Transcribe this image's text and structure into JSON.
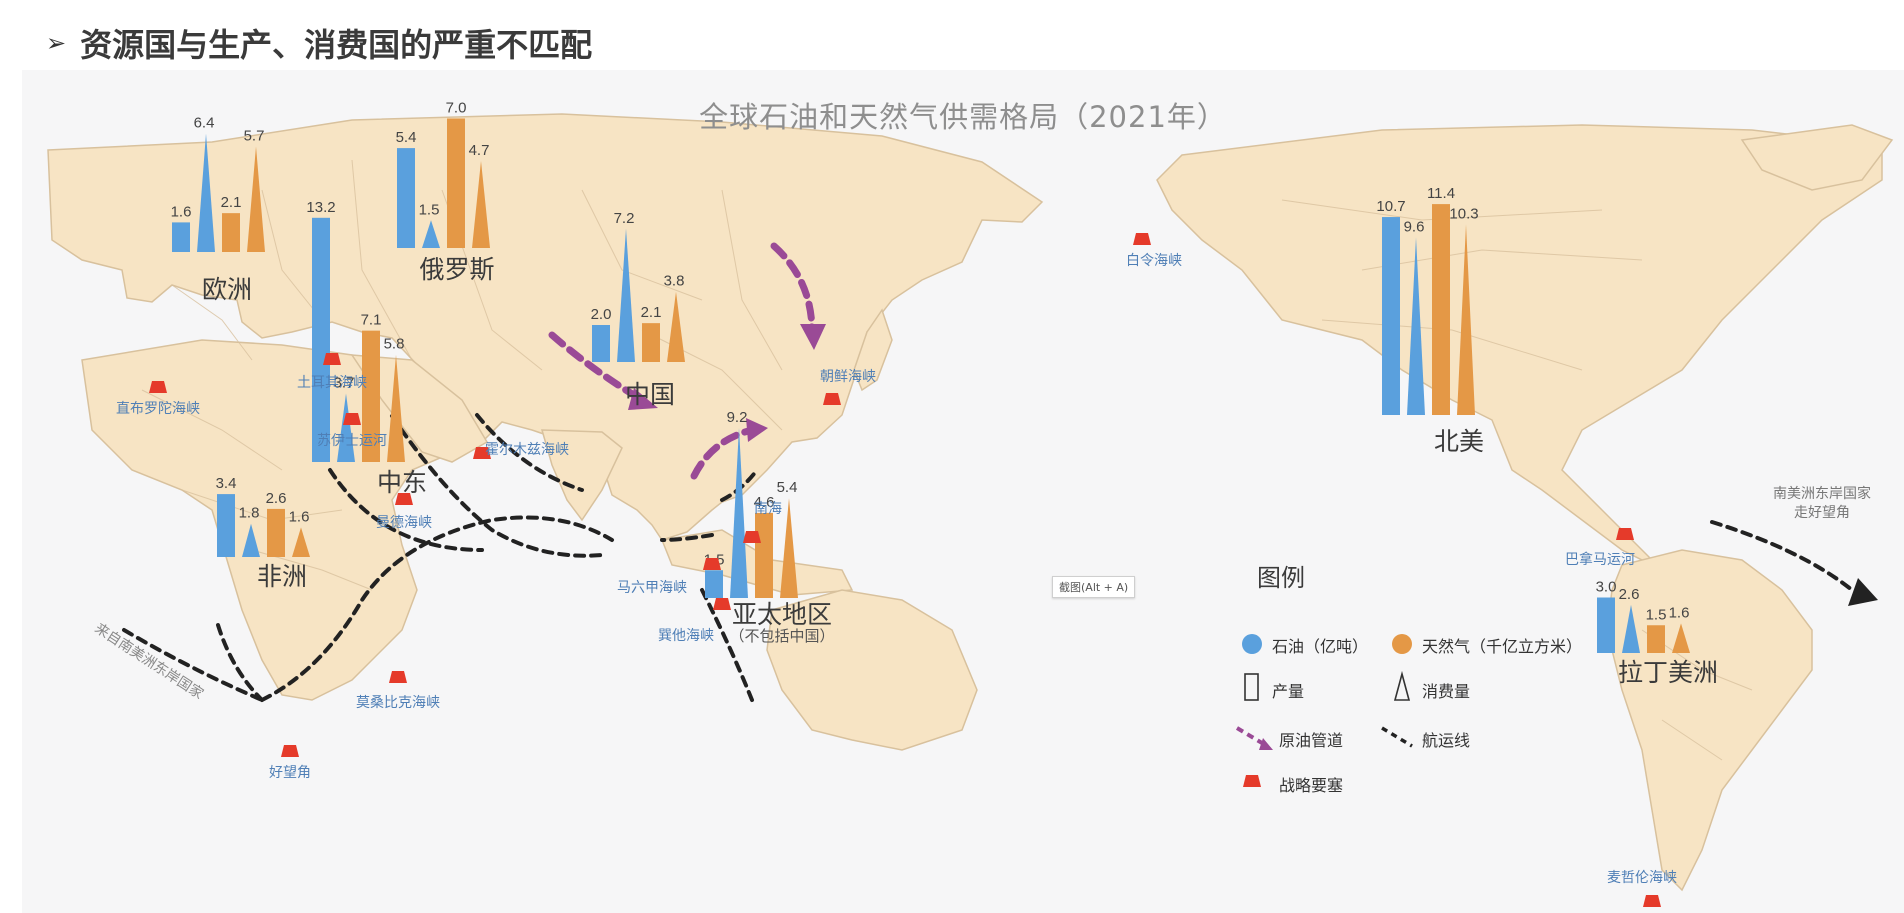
{
  "heading": {
    "marker": "➢",
    "text": "资源国与生产、消费国的严重不匹配"
  },
  "map": {
    "title": "全球石油和天然气供需格局（2021年）",
    "colors": {
      "ocean": "#f6f6f7",
      "land": "#f7e4c4",
      "border": "#d8c19d",
      "oil": "#5aa0dd",
      "gas": "#e49846",
      "pipeline": "#9a4a96",
      "shipping": "#222222",
      "choke": "#e53a2a"
    },
    "regions": [
      {
        "name": "欧洲",
        "sub": "",
        "oil_production": 1.6,
        "oil_consumption": 6.4,
        "gas_production": 2.1,
        "gas_consumption": 5.7
      },
      {
        "name": "俄罗斯",
        "sub": "",
        "oil_production": 5.4,
        "oil_consumption": 1.5,
        "gas_production": 7.0,
        "gas_consumption": 4.7
      },
      {
        "name": "中东",
        "sub": "",
        "oil_production": 13.2,
        "oil_consumption": 3.7,
        "gas_production": 7.1,
        "gas_consumption": 5.8
      },
      {
        "name": "中国",
        "sub": "",
        "oil_production": 2.0,
        "oil_consumption": 7.2,
        "gas_production": 2.1,
        "gas_consumption": 3.8
      },
      {
        "name": "非洲",
        "sub": "",
        "oil_production": 3.4,
        "oil_consumption": 1.8,
        "gas_production": 2.6,
        "gas_consumption": 1.6
      },
      {
        "name": "亚太地区",
        "sub": "（不包括中国）",
        "oil_production": 1.5,
        "oil_consumption": 9.2,
        "gas_production": 4.6,
        "gas_consumption": 5.4
      },
      {
        "name": "北美",
        "sub": "",
        "oil_production": 10.7,
        "oil_consumption": 9.6,
        "gas_production": 11.4,
        "gas_consumption": 10.3
      },
      {
        "name": "拉丁美洲",
        "sub": "",
        "oil_production": 3.0,
        "oil_consumption": 2.6,
        "gas_production": 1.5,
        "gas_consumption": 1.6
      }
    ],
    "chokepoints": [
      "直布罗陀海峡",
      "土耳其海峡",
      "苏伊士运河",
      "霍尔木兹海峡",
      "曼德海峡",
      "马六甲海峡",
      "巽他海峡",
      "南海",
      "朝鲜海峡",
      "白令海峡",
      "巴拿马运河",
      "莫桑比克海峡",
      "好望角",
      "麦哲伦海峡"
    ],
    "notes": {
      "south_america_east": "南美洲东岸国家\n走好望角",
      "from_south_america": "来自南美洲东岸国家"
    },
    "legend": {
      "title": "图例",
      "oil": "石油（亿吨）",
      "gas": "天然气（千亿立方米）",
      "production": "产量",
      "consumption": "消费量",
      "pipeline": "原油管道",
      "shipping": "航运线",
      "chokepoint": "战略要塞"
    }
  },
  "capture_tooltip": "截图(Alt + A)"
}
